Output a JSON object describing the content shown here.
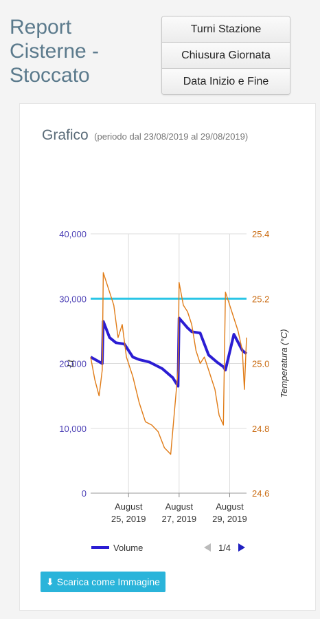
{
  "page": {
    "title": "Report\nCisterne -\nStoccato"
  },
  "buttons": {
    "turni": "Turni Stazione",
    "chiusura": "Chiusura Giornata",
    "data": "Data Inizio e Fine"
  },
  "card": {
    "title": "Grafico",
    "subtitle": "(periodo dal 23/08/2019 al 29/08/2019)",
    "download_label": "Scarica come Immagine",
    "download_icon": "download-icon"
  },
  "chart_data": {
    "type": "line",
    "title": "Grafico",
    "subtitle": "(periodo dal 23/08/2019 al 29/08/2019)",
    "x_range": [
      "2019-08-23 12:00",
      "2019-08-29 16:00"
    ],
    "x_ticks": [
      {
        "date": "2019-08-25",
        "label1": "August",
        "label2": "25, 2019"
      },
      {
        "date": "2019-08-27",
        "label1": "August",
        "label2": "27, 2019"
      },
      {
        "date": "2019-08-29",
        "label1": "August",
        "label2": "29, 2019"
      }
    ],
    "y_left": {
      "label": "Lt",
      "min": 0,
      "max": 40000,
      "ticks": [
        0,
        10000,
        20000,
        30000,
        40000
      ],
      "tick_labels": [
        "0",
        "10,000",
        "20,000",
        "30,000",
        "40,000"
      ]
    },
    "y_right": {
      "label": "Temperatura (°C)",
      "min": 24.6,
      "max": 25.4,
      "ticks": [
        24.6,
        24.8,
        25.0,
        25.2,
        25.4
      ],
      "tick_labels": [
        "24.6",
        "24.8",
        "25.0",
        "25.2",
        "25.4"
      ]
    },
    "grid": true,
    "series": [
      {
        "name": "Volume",
        "axis": "left",
        "color": "#2b1dd3",
        "x": [
          "2019-08-23 12:00",
          "2019-08-23 23:00",
          "2019-08-24 00:00",
          "2019-08-24 06:00",
          "2019-08-24 12:00",
          "2019-08-24 20:00",
          "2019-08-25 04:00",
          "2019-08-25 10:00",
          "2019-08-25 20:00",
          "2019-08-26 08:00",
          "2019-08-26 18:00",
          "2019-08-26 23:00",
          "2019-08-27 00:00",
          "2019-08-27 08:00",
          "2019-08-27 12:00",
          "2019-08-27 20:00",
          "2019-08-28 04:00",
          "2019-08-28 12:00",
          "2019-08-28 18:00",
          "2019-08-28 20:00",
          "2019-08-29 04:00",
          "2019-08-29 12:00",
          "2019-08-29 16:00"
        ],
        "y": [
          21000,
          20000,
          26500,
          24000,
          23200,
          23000,
          21000,
          20600,
          20200,
          19200,
          17800,
          16500,
          27000,
          25500,
          24900,
          24700,
          21300,
          20200,
          19500,
          19000,
          24500,
          22000,
          21500
        ]
      },
      {
        "name": "Temperatura",
        "axis": "right",
        "color": "#e07b16",
        "x": [
          "2019-08-23 12:00",
          "2019-08-23 16:00",
          "2019-08-23 20:00",
          "2019-08-23 23:00",
          "2019-08-24 00:00",
          "2019-08-24 02:00",
          "2019-08-24 06:00",
          "2019-08-24 10:00",
          "2019-08-24 14:00",
          "2019-08-24 18:00",
          "2019-08-24 22:00",
          "2019-08-25 04:00",
          "2019-08-25 10:00",
          "2019-08-25 16:00",
          "2019-08-25 22:00",
          "2019-08-26 04:00",
          "2019-08-26 10:00",
          "2019-08-26 16:00",
          "2019-08-26 23:00",
          "2019-08-27 00:00",
          "2019-08-27 04:00",
          "2019-08-27 08:00",
          "2019-08-27 12:00",
          "2019-08-27 16:00",
          "2019-08-27 20:00",
          "2019-08-28 00:00",
          "2019-08-28 04:00",
          "2019-08-28 10:00",
          "2019-08-28 14:00",
          "2019-08-28 18:00",
          "2019-08-28 20:00",
          "2019-08-29 00:00",
          "2019-08-29 04:00",
          "2019-08-29 08:00",
          "2019-08-29 12:00",
          "2019-08-29 14:00",
          "2019-08-29 16:00"
        ],
        "y": [
          25.02,
          24.95,
          24.9,
          24.98,
          25.28,
          25.26,
          25.22,
          25.18,
          25.08,
          25.12,
          25.02,
          24.96,
          24.88,
          24.82,
          24.81,
          24.79,
          24.74,
          24.72,
          24.98,
          25.25,
          25.18,
          25.16,
          25.12,
          25.04,
          25.0,
          25.02,
          24.98,
          24.92,
          24.84,
          24.81,
          25.22,
          25.18,
          25.14,
          25.1,
          25.04,
          24.92,
          25.08
        ]
      }
    ],
    "reference_line": {
      "axis": "left",
      "value": 30000,
      "color": "#29c5e6"
    },
    "legend": {
      "position": "bottom",
      "entries": [
        {
          "label": "Volume",
          "color": "#2b1dd3"
        }
      ],
      "pager": "1/4"
    }
  }
}
